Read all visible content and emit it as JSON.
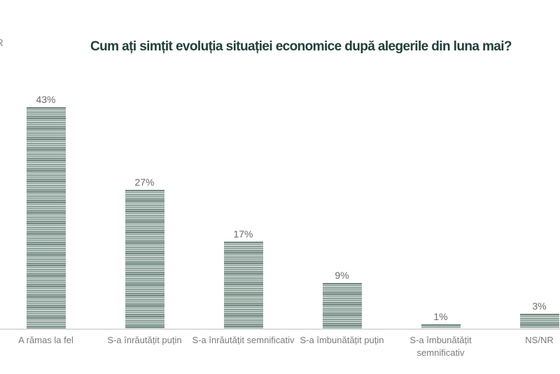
{
  "logo_fragment": {
    "text": "R"
  },
  "chart_data": {
    "type": "bar",
    "title": "Cum ați simțit evoluția situației economice după alegerile din luna mai?",
    "categories": [
      "A rămas la fel",
      "S-a înrăutățit puțin",
      "S-a înrăutățit semnificativ",
      "S-a îmbunătățit puțin",
      "S-a îmbunătățit\nsemnificativ",
      "NS/NR"
    ],
    "values": [
      43,
      27,
      17,
      9,
      1,
      3
    ],
    "value_labels": [
      "43%",
      "27%",
      "17%",
      "9%",
      "1%",
      "3%"
    ],
    "unit": "%",
    "xlabel": "",
    "ylabel": "",
    "ylim": [
      0,
      45
    ],
    "grid": false,
    "legend": null,
    "colors": {
      "title": "#22403a",
      "bar_base": "#9db0a9",
      "bar_stripe_light": "#e3e9e6",
      "bar_stripe_dark": "#72887f",
      "value_label": "#6a6a6a",
      "category_label": "#7a7a7a",
      "axis_line": "#dcdedd",
      "background": "#ffffff"
    }
  }
}
